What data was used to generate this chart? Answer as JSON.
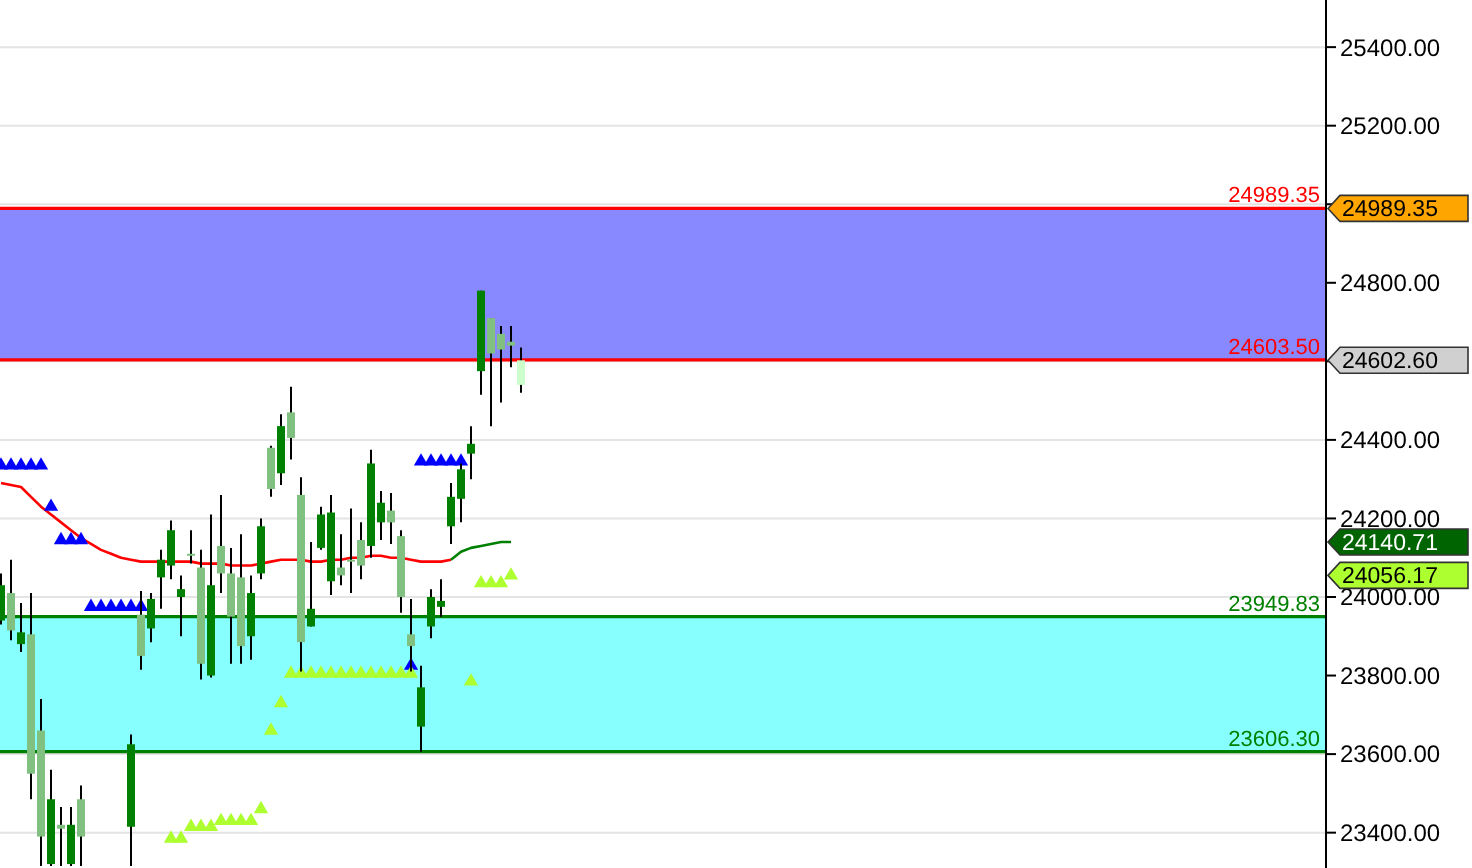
{
  "chart_data": {
    "type": "candlestick",
    "categories": [
      null,
      null,
      null,
      null,
      null,
      null,
      null,
      null,
      null,
      null,
      null,
      null,
      null,
      null,
      null,
      null,
      null,
      null,
      null,
      null,
      null,
      null,
      null,
      null,
      null,
      null,
      null,
      null,
      null,
      null,
      null,
      null,
      null,
      null,
      null,
      null,
      null,
      null,
      null,
      null,
      null,
      null,
      null,
      null,
      null,
      null,
      null,
      null,
      null,
      null,
      null,
      null,
      null,
      null,
      null,
      null,
      null,
      null,
      null,
      null,
      null,
      null,
      null,
      null,
      null,
      null,
      null,
      null,
      null,
      null,
      null,
      null,
      null,
      null,
      null,
      null,
      null,
      null,
      null,
      null,
      null,
      null,
      null,
      null,
      null,
      null,
      null,
      null,
      null,
      null,
      null,
      null,
      null,
      null,
      null,
      null,
      null,
      null,
      null,
      null,
      null,
      null,
      null,
      null,
      null,
      null,
      null,
      null,
      null,
      null,
      null,
      null,
      null,
      null,
      null,
      null,
      null,
      null,
      null,
      null,
      null,
      null,
      null,
      null,
      null,
      null,
      null,
      null,
      null,
      null,
      null,
      null,
      null
    ],
    "ohlc": [
      [
        23940,
        24060,
        23930,
        24030
      ],
      [
        24010,
        24095,
        23890,
        23915
      ],
      [
        23880,
        23985,
        23860,
        23910
      ],
      [
        23905,
        24010,
        23485,
        23550
      ],
      [
        23660,
        23740,
        23315,
        23390
      ],
      [
        23320,
        23560,
        23315,
        23485
      ],
      [
        23420,
        23465,
        23315,
        23410
      ],
      [
        23320,
        23465,
        23315,
        23420
      ],
      [
        23485,
        23520,
        23315,
        23390
      ],
      null,
      null,
      null,
      null,
      [
        23415,
        23650,
        23315,
        23625
      ],
      [
        23955,
        24015,
        23815,
        23850
      ],
      [
        23920,
        24010,
        23885,
        23995
      ],
      [
        24050,
        24120,
        23970,
        24095
      ],
      [
        24080,
        24195,
        24045,
        24170
      ],
      [
        24000,
        24055,
        23900,
        24020
      ],
      [
        24110,
        24170,
        24085,
        24105
      ],
      [
        24075,
        24120,
        23790,
        23830
      ],
      [
        23800,
        24210,
        23795,
        24030
      ],
      [
        24130,
        24260,
        24010,
        24060
      ],
      [
        24060,
        24125,
        23830,
        23950
      ],
      [
        24050,
        24160,
        23830,
        23875
      ],
      [
        23900,
        24055,
        23840,
        24010
      ],
      [
        24060,
        24200,
        24045,
        24180
      ],
      [
        24380,
        24385,
        24255,
        24275
      ],
      [
        24315,
        24465,
        24285,
        24435
      ],
      [
        24470,
        24535,
        24350,
        24405
      ],
      [
        24260,
        24305,
        23810,
        23885
      ],
      [
        23925,
        24140,
        23925,
        23970
      ],
      [
        24125,
        24230,
        24120,
        24210
      ],
      [
        24040,
        24260,
        24005,
        24215
      ],
      [
        24075,
        24160,
        24030,
        24055
      ],
      [
        24095,
        24225,
        24010,
        24090
      ],
      [
        24145,
        24190,
        24045,
        24080
      ],
      [
        24130,
        24375,
        24100,
        24340
      ],
      [
        24190,
        24270,
        24145,
        24240
      ],
      [
        24220,
        24265,
        24135,
        24190
      ],
      [
        24155,
        24170,
        23960,
        24000
      ],
      [
        23905,
        23995,
        23810,
        23875
      ],
      [
        23670,
        23825,
        23606,
        23770
      ],
      [
        23925,
        24020,
        23895,
        24000
      ],
      [
        23975,
        24045,
        23950,
        23990
      ],
      [
        24180,
        24290,
        24135,
        24255
      ],
      [
        24250,
        24340,
        24190,
        24325
      ],
      [
        24365,
        24435,
        24300,
        24390
      ],
      [
        24575,
        24780,
        24515,
        24780
      ],
      [
        24710,
        24710,
        24435,
        24620
      ],
      [
        24670,
        24690,
        24495,
        24630
      ],
      [
        24650,
        24690,
        24585,
        24640
      ],
      [
        24540,
        24635,
        24520,
        24602.6
      ],
      null,
      null,
      null,
      null,
      null,
      null,
      null,
      null,
      null,
      null,
      null,
      null,
      null,
      null,
      null,
      null,
      null,
      null,
      null,
      null,
      null,
      null,
      null,
      null,
      null,
      null,
      null,
      null,
      null,
      null,
      null,
      null,
      null,
      null,
      null,
      null,
      null,
      null,
      null,
      null,
      null,
      null,
      null,
      null,
      null,
      null,
      null,
      null,
      null,
      null,
      null,
      null,
      null,
      null,
      null,
      null,
      null,
      null,
      null,
      null,
      null,
      null,
      null,
      null,
      null,
      null,
      null,
      null,
      null,
      null,
      null,
      null,
      null,
      null,
      null,
      null,
      null,
      null,
      null,
      null
    ],
    "colors": [
      "#008000",
      "#80c080",
      "#008000",
      "#80c080",
      "#80c080",
      "#008000",
      "#80c080",
      "#008000",
      "#80c080",
      null,
      null,
      null,
      null,
      "#008000",
      "#80c080",
      "#008000",
      "#008000",
      "#008000",
      "#008000",
      "#80c080",
      "#80c080",
      "#008000",
      "#80c080",
      "#80c080",
      "#80c080",
      "#008000",
      "#008000",
      "#80c080",
      "#008000",
      "#80c080",
      "#80c080",
      "#008000",
      "#008000",
      "#008000",
      "#80c080",
      "#80c080",
      "#80c080",
      "#008000",
      "#008000",
      "#80c080",
      "#80c080",
      "#80c080",
      "#008000",
      "#008000",
      "#008000",
      "#008000",
      "#008000",
      "#008000",
      "#008000",
      "#80c080",
      "#80c080",
      "#80c080",
      "#ccffcc",
      null,
      null,
      null,
      null,
      null,
      null,
      null,
      null,
      null,
      null,
      null,
      null,
      null,
      null,
      null,
      null,
      null,
      null,
      null,
      null,
      null,
      null,
      null,
      null,
      null,
      null,
      null,
      null,
      null,
      null,
      null,
      null,
      null,
      null,
      null,
      null,
      null,
      null,
      null,
      null,
      null,
      null,
      null,
      null,
      null,
      null,
      null,
      null,
      null,
      null,
      null,
      null,
      null,
      null,
      null,
      null,
      null,
      null,
      null,
      null,
      null,
      null,
      null,
      null,
      null,
      null,
      null,
      null,
      null,
      null,
      null,
      null,
      null,
      null,
      null,
      null,
      null,
      null,
      null,
      null
    ],
    "series": [
      {
        "type": "line",
        "color": "#ff0000",
        "values": [
          24290,
          24285,
          24280,
          24255,
          24230,
          24210,
          24190,
          24170,
          24150,
          24135,
          24120,
          24110,
          24100,
          24095,
          24090,
          24090,
          24090,
          24090,
          24090,
          24090,
          24085,
          24085,
          24085,
          24080,
          24080,
          24080,
          24085,
          24090,
          24095,
          24095,
          24095,
          24090,
          24090,
          24095,
          24095,
          24100,
          24100,
          24105,
          24105,
          24100,
          24100,
          24095,
          24090,
          24090,
          24090,
          24095,
          null,
          null,
          null,
          null,
          null,
          null,
          null,
          null,
          null,
          null,
          null,
          null,
          null,
          null,
          null,
          null,
          null,
          null,
          null,
          null,
          null,
          null,
          null,
          null,
          null,
          null,
          null,
          null,
          null,
          null,
          null,
          null,
          null,
          null,
          null,
          null,
          null,
          null,
          null,
          null,
          null,
          null,
          null,
          null,
          null,
          null,
          null,
          null,
          null,
          null,
          null,
          null,
          null,
          null,
          null,
          null,
          null,
          null,
          null,
          null,
          null,
          null,
          null,
          null,
          null,
          null,
          null,
          null,
          null,
          null,
          null,
          null,
          null,
          null,
          null,
          null,
          null,
          null,
          null,
          null,
          null,
          null,
          null,
          null,
          null,
          null,
          null
        ]
      },
      {
        "type": "line",
        "color": "#008000",
        "values": [
          null,
          null,
          null,
          null,
          null,
          null,
          null,
          null,
          null,
          null,
          null,
          null,
          null,
          null,
          null,
          null,
          null,
          null,
          null,
          null,
          null,
          null,
          null,
          null,
          null,
          null,
          null,
          null,
          null,
          null,
          null,
          null,
          null,
          null,
          null,
          null,
          null,
          null,
          null,
          null,
          null,
          null,
          null,
          null,
          null,
          24095,
          24115,
          24125,
          24130,
          24135,
          24140,
          24140,
          null,
          null,
          null,
          null,
          null,
          null,
          null,
          null,
          null,
          null,
          null,
          null,
          null,
          null,
          null,
          null,
          null,
          null,
          null,
          null,
          null,
          null,
          null,
          null,
          null,
          null,
          null,
          null,
          null,
          null,
          null,
          null,
          null,
          null,
          null,
          null,
          null,
          null,
          null,
          null,
          null,
          null,
          null,
          null,
          null,
          null,
          null,
          null,
          null,
          null,
          null,
          null,
          null,
          null,
          null,
          null,
          null,
          null,
          null,
          null,
          null,
          null,
          null,
          null,
          null,
          null,
          null,
          null,
          null,
          null,
          null,
          null,
          null,
          null,
          null,
          null,
          null,
          null,
          null,
          null,
          null
        ]
      },
      {
        "type": "scatter",
        "color": "#0000ff",
        "marker": "triangle",
        "values": [
          24335,
          24335,
          24335,
          24335,
          24335,
          24230,
          24145,
          24145,
          24145,
          23975,
          23975,
          23975,
          23975,
          23975,
          23975,
          null,
          null,
          null,
          null,
          null,
          null,
          null,
          null,
          null,
          null,
          null,
          null,
          null,
          null,
          null,
          null,
          null,
          null,
          null,
          null,
          null,
          null,
          null,
          null,
          null,
          null,
          23825,
          24345,
          24345,
          24345,
          24345,
          24345,
          null,
          null,
          null,
          null,
          null,
          null,
          null,
          null,
          null,
          null,
          null,
          null,
          null,
          null,
          null,
          null,
          null,
          null,
          null,
          null,
          null,
          null,
          null,
          null,
          null,
          null,
          null,
          null,
          null,
          null,
          null,
          null,
          null,
          null,
          null,
          null,
          null,
          null,
          null,
          null,
          null,
          null,
          null,
          null,
          null,
          null,
          null,
          null,
          null,
          null,
          null,
          null,
          null,
          null,
          null,
          null,
          null,
          null,
          null,
          null,
          null,
          null,
          null,
          null,
          null,
          null,
          null,
          null,
          null,
          null,
          null,
          null,
          null,
          null,
          null,
          null,
          null,
          null,
          null,
          null,
          null,
          null,
          null,
          null,
          null,
          null
        ]
      },
      {
        "type": "scatter",
        "color": "#adff2f",
        "marker": "triangle",
        "values": [
          null,
          null,
          null,
          null,
          null,
          null,
          null,
          null,
          null,
          null,
          null,
          null,
          null,
          null,
          null,
          null,
          null,
          23385,
          23385,
          23415,
          23415,
          23415,
          23430,
          23430,
          23430,
          23430,
          23460,
          23660,
          23730,
          23805,
          23805,
          23805,
          23805,
          23805,
          23805,
          23805,
          23805,
          23805,
          23805,
          23805,
          23805,
          23805,
          null,
          null,
          null,
          null,
          null,
          23785,
          24035,
          24035,
          24035,
          24055,
          null,
          null,
          null,
          null,
          null,
          null,
          null,
          null,
          null,
          null,
          null,
          null,
          null,
          null,
          null,
          null,
          null,
          null,
          null,
          null,
          null,
          null,
          null,
          null,
          null,
          null,
          null,
          null,
          null,
          null,
          null,
          null,
          null,
          null,
          null,
          null,
          null,
          null,
          null,
          null,
          null,
          null,
          null,
          null,
          null,
          null,
          null,
          null,
          null,
          null,
          null,
          null,
          null,
          null,
          null,
          null,
          null,
          null,
          null,
          null,
          null,
          null,
          null,
          null,
          null,
          null,
          null,
          null,
          null,
          null,
          null,
          null,
          null,
          null,
          null,
          null,
          null,
          null,
          null,
          null,
          null
        ]
      }
    ],
    "ylim": [
      23310,
      25520
    ],
    "yticks": [
      {
        "value": 23400,
        "label": "23400.00"
      },
      {
        "value": 23600,
        "label": "23600.00"
      },
      {
        "value": 23800,
        "label": "23800.00"
      },
      {
        "value": 24000,
        "label": "24000.00"
      },
      {
        "value": 24200,
        "label": "24200.00"
      },
      {
        "value": 24400,
        "label": "24400.00"
      },
      {
        "value": 24600,
        "label": null
      },
      {
        "value": 24800,
        "label": "24800.00"
      },
      {
        "value": 25000,
        "label": null
      },
      {
        "value": 25200,
        "label": "25200.00"
      },
      {
        "value": 25400,
        "label": "25400.00"
      }
    ],
    "bands": [
      {
        "axis": "y",
        "from": 24603.5,
        "to": 24989.35,
        "color": "#8888ff"
      },
      {
        "axis": "y",
        "from": 23606.3,
        "to": 23949.83,
        "color": "#88ffff"
      }
    ],
    "ref_lines": [
      {
        "axis": "y",
        "value": 24989.35,
        "label": "24989.35",
        "color": "#ff0000"
      },
      {
        "axis": "y",
        "value": 24603.5,
        "label": "24603.50",
        "color": "#ff0000"
      },
      {
        "axis": "y",
        "value": 23949.83,
        "label": "23949.83",
        "color": "#008000"
      },
      {
        "axis": "y",
        "value": 23606.3,
        "label": "23606.30",
        "color": "#008000"
      }
    ],
    "annotations": [
      "24989.35",
      "24602.60",
      "24140.71",
      "24056.17"
    ],
    "grid": "y",
    "tick_labels": "y"
  }
}
